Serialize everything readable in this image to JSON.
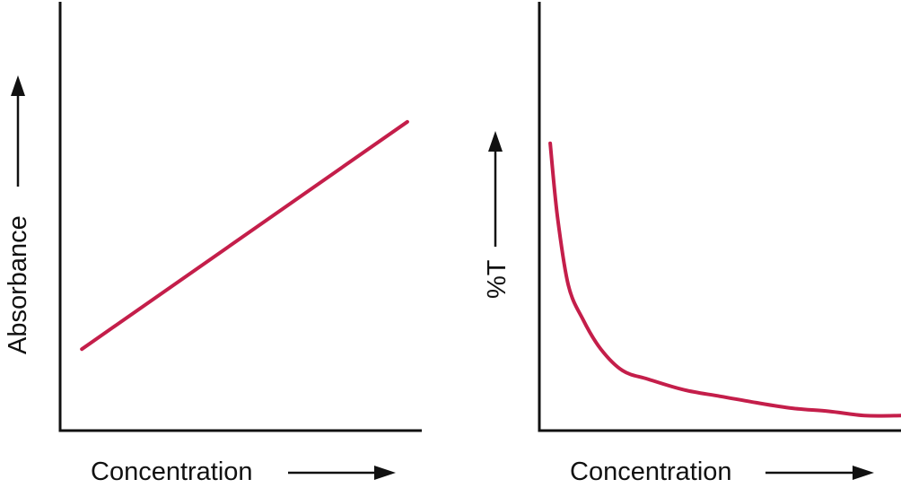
{
  "colors": {
    "series": "#c41e4a",
    "axis": "#111111"
  },
  "chart_data": [
    {
      "type": "line",
      "title": "",
      "xlabel": "Concentration",
      "ylabel": "Absorbance",
      "x_arrow": true,
      "y_arrow": true,
      "grid": false,
      "xlim": [
        0,
        10
      ],
      "ylim": [
        0,
        10
      ],
      "series": [
        {
          "color": "#c41e4a",
          "x": [
            0.6,
            9.6
          ],
          "y": [
            1.9,
            7.2
          ]
        }
      ]
    },
    {
      "type": "line",
      "title": "",
      "xlabel": "Concentration",
      "ylabel": "%T",
      "x_arrow": true,
      "y_arrow": true,
      "grid": false,
      "xlim": [
        0,
        10
      ],
      "ylim": [
        0,
        10
      ],
      "series": [
        {
          "color": "#c41e4a",
          "x": [
            0.3,
            0.5,
            0.8,
            1.2,
            1.7,
            2.3,
            3.0,
            4.0,
            5.0,
            6.0,
            7.0,
            8.0,
            9.0,
            10.0
          ],
          "y": [
            6.7,
            5.0,
            3.4,
            2.6,
            1.9,
            1.4,
            1.2,
            0.95,
            0.8,
            0.65,
            0.52,
            0.45,
            0.35,
            0.35
          ]
        }
      ]
    }
  ]
}
